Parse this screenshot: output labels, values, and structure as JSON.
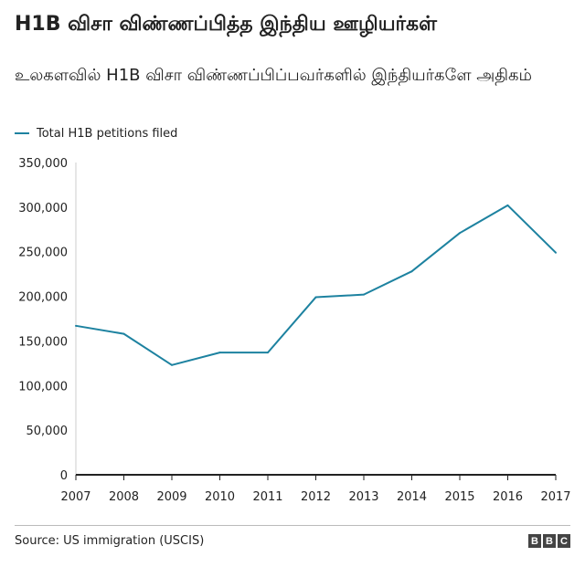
{
  "header": {
    "title": "H1B விசா விண்ணப்பித்த இந்திய ஊழியர்கள்",
    "subtitle": "உலகளவில் H1B விசா விண்ணப்பிப்பவர்களில் இந்தியர்களே அதிகம்"
  },
  "footer": {
    "source": "Source: US immigration (USCIS)",
    "logo_letters": [
      "B",
      "B",
      "C"
    ]
  },
  "colors": {
    "series": "#1d82a0",
    "axis": "#222222",
    "grid_tick": "#cccccc"
  },
  "chart_data": {
    "type": "line",
    "title": "H1B விசா விண்ணப்பித்த இந்திய ஊழியர்கள்",
    "subtitle": "உலகளவில் H1B விசா விண்ணப்பிப்பவர்களில் இந்தியர்களே அதிகம்",
    "x": [
      2007,
      2008,
      2009,
      2010,
      2011,
      2012,
      2013,
      2014,
      2015,
      2016,
      2017
    ],
    "series": [
      {
        "name": "Total H1B petitions filed",
        "values": [
          167000,
          158000,
          123000,
          137000,
          137000,
          199000,
          202000,
          228000,
          271000,
          302000,
          249000
        ]
      }
    ],
    "xlabel": "",
    "ylabel": "",
    "ylim": [
      0,
      350000
    ],
    "yticks": [
      0,
      50000,
      100000,
      150000,
      200000,
      250000,
      300000,
      350000
    ],
    "ytick_labels": [
      "0",
      "50,000",
      "100,000",
      "150,000",
      "200,000",
      "250,000",
      "300,000",
      "350,000"
    ],
    "xtick_labels": [
      "2007",
      "2008",
      "2009",
      "2010",
      "2011",
      "2012",
      "2013",
      "2014",
      "2015",
      "2016",
      "2017"
    ],
    "grid": false,
    "legend_position": "top-left"
  }
}
